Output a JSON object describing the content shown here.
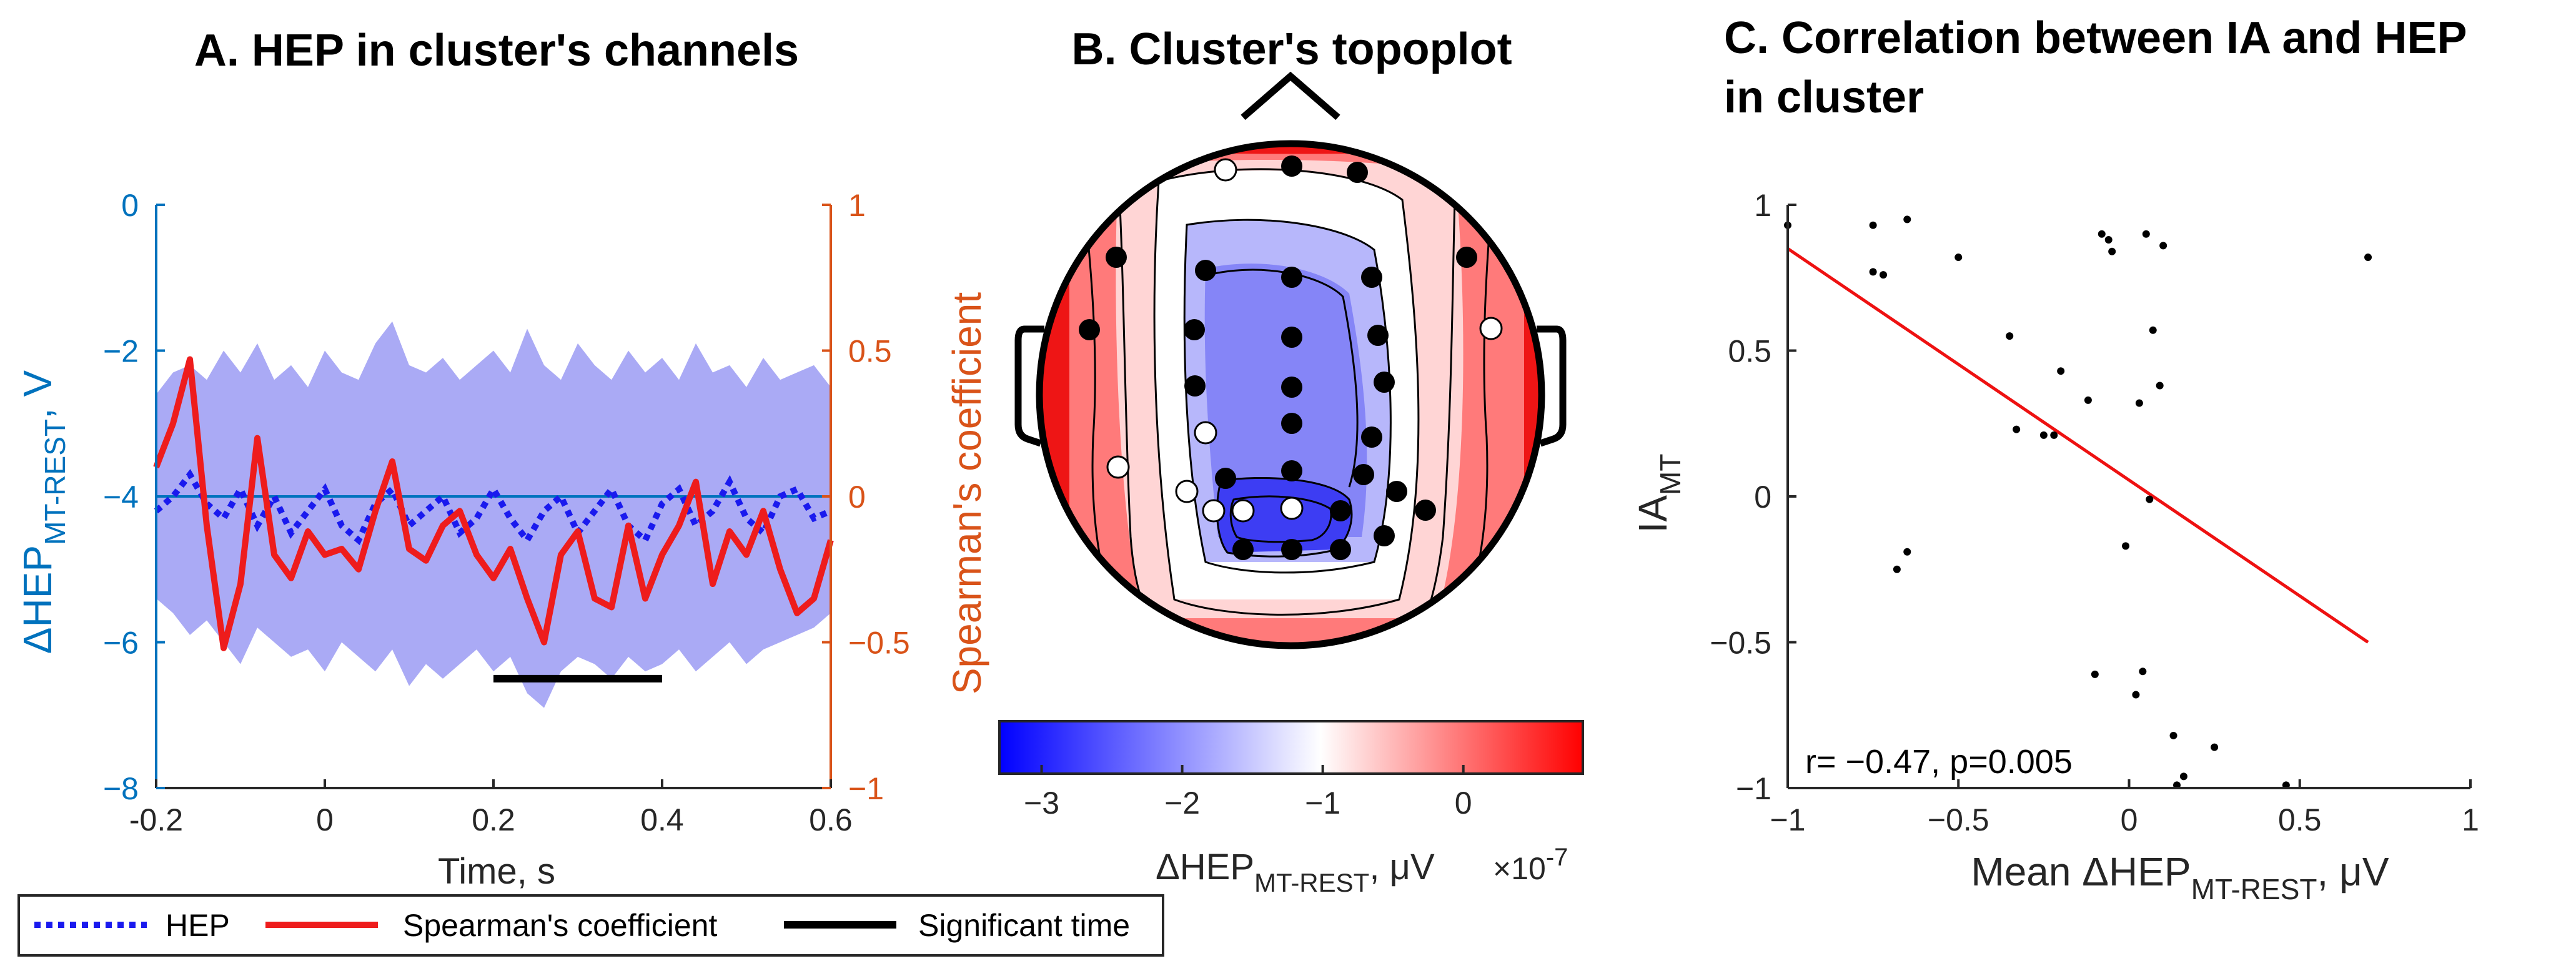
{
  "colors": {
    "left_axis": "#0072BD",
    "right_axis": "#D95319",
    "hep_line": "#1a1aee",
    "band": "#aaaaf5",
    "spearman": "#ee1c1c",
    "sig": "#000000",
    "fit": "#ee1111",
    "scatter": "#000000",
    "map_neg": "#0000ff",
    "map_mid": "#ffffff",
    "map_pos": "#ff0000"
  },
  "legend": {
    "hep": "HEP",
    "spearman": "Spearman's coefficient",
    "significant": "Significant time"
  },
  "chart_data": [
    {
      "id": "A",
      "type": "line",
      "title": "A. HEP in cluster's channels",
      "xlabel": "Time, s",
      "ylabel_main": "ΔHEP",
      "ylabel_sub": "MT-REST",
      "ylabel_tail": ", V",
      "ylabel_right": "Spearman's coefficient",
      "xlim": [
        -0.2,
        0.6
      ],
      "ylim_left": [
        -8,
        0
      ],
      "ylim_right": [
        -1,
        1
      ],
      "xticks": [
        "-0.2",
        "0",
        "0.2",
        "0.4",
        "0.6"
      ],
      "xtick_values": [
        -0.2,
        0,
        0.2,
        0.4,
        0.6
      ],
      "yticks_left": [
        "−8",
        "−6",
        "−4",
        "−2",
        "0"
      ],
      "ytick_left_values": [
        -8,
        -6,
        -4,
        -2,
        0
      ],
      "yticks_right": [
        "−1",
        "−0.5",
        "0",
        "0.5",
        "1"
      ],
      "ytick_right_values": [
        -1,
        -0.5,
        0,
        0.5,
        1
      ],
      "x": [
        -0.2,
        -0.18,
        -0.16,
        -0.14,
        -0.12,
        -0.1,
        -0.08,
        -0.06,
        -0.04,
        -0.02,
        0,
        0.02,
        0.04,
        0.06,
        0.08,
        0.1,
        0.12,
        0.14,
        0.16,
        0.18,
        0.2,
        0.22,
        0.24,
        0.26,
        0.28,
        0.3,
        0.32,
        0.34,
        0.36,
        0.38,
        0.4,
        0.42,
        0.44,
        0.46,
        0.48,
        0.5,
        0.52,
        0.54,
        0.56,
        0.58,
        0.6
      ],
      "series": [
        {
          "name": "HEP",
          "axis": "left",
          "values": [
            -4.2,
            -4.0,
            -3.7,
            -4.1,
            -4.3,
            -3.9,
            -4.4,
            -4.0,
            -4.5,
            -4.2,
            -3.9,
            -4.4,
            -4.6,
            -4.1,
            -3.9,
            -4.4,
            -4.2,
            -4.0,
            -4.5,
            -4.3,
            -3.9,
            -4.3,
            -4.6,
            -4.2,
            -4.0,
            -4.5,
            -4.2,
            -3.9,
            -4.4,
            -4.6,
            -4.1,
            -3.9,
            -4.4,
            -4.2,
            -3.8,
            -4.3,
            -4.5,
            -4.0,
            -3.9,
            -4.3,
            -4.2
          ]
        },
        {
          "name": "Spearman's coefficient",
          "axis": "right",
          "values": [
            0.1,
            0.25,
            0.47,
            -0.1,
            -0.52,
            -0.3,
            0.2,
            -0.2,
            -0.28,
            -0.12,
            -0.2,
            -0.18,
            -0.25,
            -0.05,
            0.12,
            -0.18,
            -0.22,
            -0.1,
            -0.05,
            -0.2,
            -0.28,
            -0.18,
            -0.35,
            -0.5,
            -0.2,
            -0.12,
            -0.35,
            -0.38,
            -0.1,
            -0.35,
            -0.2,
            -0.1,
            0.05,
            -0.3,
            -0.12,
            -0.2,
            -0.05,
            -0.25,
            -0.4,
            -0.35,
            -0.15
          ]
        }
      ],
      "band_upper": [
        -2.6,
        -2.3,
        -2.2,
        -2.4,
        -2.0,
        -2.3,
        -1.9,
        -2.4,
        -2.2,
        -2.5,
        -2.0,
        -2.3,
        -2.4,
        -1.9,
        -1.6,
        -2.2,
        -2.3,
        -2.1,
        -2.4,
        -2.2,
        -2.0,
        -2.3,
        -1.7,
        -2.2,
        -2.4,
        -1.9,
        -2.2,
        -2.4,
        -2.0,
        -2.3,
        -2.1,
        -2.4,
        -1.9,
        -2.3,
        -2.2,
        -2.5,
        -2.1,
        -2.4,
        -2.3,
        -2.2,
        -2.5
      ],
      "band_lower": [
        -5.4,
        -5.6,
        -5.9,
        -5.7,
        -6.0,
        -6.3,
        -5.8,
        -6.0,
        -6.2,
        -6.1,
        -6.4,
        -6.0,
        -6.2,
        -6.4,
        -6.1,
        -6.6,
        -6.3,
        -6.5,
        -6.3,
        -6.1,
        -6.4,
        -6.2,
        -6.7,
        -6.9,
        -6.4,
        -6.2,
        -6.3,
        -6.5,
        -6.2,
        -6.4,
        -6.3,
        -6.1,
        -6.4,
        -6.2,
        -6.0,
        -6.3,
        -6.1,
        -6.0,
        -5.9,
        -5.8,
        -5.6
      ],
      "zero_line_right": 0,
      "significant_interval": [
        0.2,
        0.4
      ],
      "significant_level_left": -6.5
    },
    {
      "id": "B",
      "type": "heatmap",
      "title": "B. Cluster's topoplot",
      "colorbar_ticks": [
        "−3",
        "−2",
        "−1",
        "0"
      ],
      "colorbar_tick_values": [
        -3,
        -2,
        -1,
        0
      ],
      "colorbar_range": [
        -3.3,
        0.85
      ],
      "colorbar_label_main": "ΔHEP",
      "colorbar_label_sub": "MT-REST",
      "colorbar_label_tail": ", μV",
      "colorbar_multiplier": "×10",
      "colorbar_exponent": "-7"
    },
    {
      "id": "C",
      "type": "scatter",
      "title_lines": [
        "C. Correlation between IA and HEP",
        "in cluster"
      ],
      "xlabel_main": "Mean ΔHEP",
      "xlabel_sub": "MT-REST",
      "xlabel_tail": ", μV",
      "ylabel_main": "IA",
      "ylabel_sub": "MT",
      "xlim": [
        -1,
        1
      ],
      "ylim": [
        -1,
        1
      ],
      "xticks": [
        "−1",
        "−0.5",
        "0",
        "0.5",
        "1"
      ],
      "xtick_values": [
        -1,
        -0.5,
        0,
        0.5,
        1
      ],
      "yticks": [
        "−1",
        "−0.5",
        "0",
        "0.5",
        "1"
      ],
      "ytick_values": [
        -1,
        -0.5,
        0,
        0.5,
        1
      ],
      "points": [
        [
          -1.0,
          0.93
        ],
        [
          -0.75,
          0.93
        ],
        [
          -0.65,
          0.95
        ],
        [
          -0.75,
          0.77
        ],
        [
          -0.72,
          0.76
        ],
        [
          -0.5,
          0.82
        ],
        [
          -0.08,
          0.9
        ],
        [
          -0.06,
          0.88
        ],
        [
          -0.05,
          0.84
        ],
        [
          0.05,
          0.9
        ],
        [
          0.1,
          0.86
        ],
        [
          0.7,
          0.82
        ],
        [
          -0.35,
          0.55
        ],
        [
          -0.2,
          0.43
        ],
        [
          -0.12,
          0.33
        ],
        [
          0.03,
          0.32
        ],
        [
          0.07,
          0.57
        ],
        [
          0.09,
          0.38
        ],
        [
          -0.33,
          0.23
        ],
        [
          -0.25,
          0.21
        ],
        [
          -0.22,
          0.21
        ],
        [
          0.06,
          -0.01
        ],
        [
          -0.01,
          -0.17
        ],
        [
          -0.65,
          -0.19
        ],
        [
          -0.68,
          -0.25
        ],
        [
          -0.1,
          -0.61
        ],
        [
          0.04,
          -0.6
        ],
        [
          0.02,
          -0.68
        ],
        [
          0.13,
          -0.82
        ],
        [
          0.25,
          -0.86
        ],
        [
          0.16,
          -0.96
        ],
        [
          0.14,
          -0.99
        ],
        [
          0.46,
          -0.99
        ]
      ],
      "fit_line": [
        [
          -1.0,
          0.85
        ],
        [
          0.7,
          -0.5
        ]
      ],
      "annotation": "r= −0.47, p=0.005"
    }
  ]
}
